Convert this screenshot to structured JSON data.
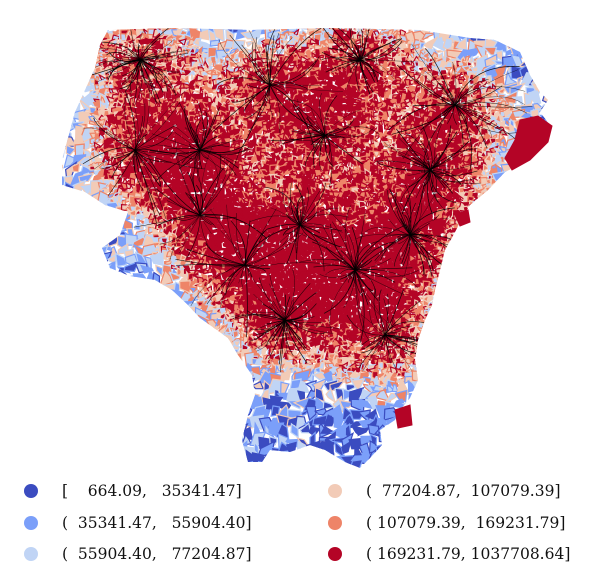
{
  "map": {
    "palette": [
      "#3b4cc0",
      "#7b9ff9",
      "#c0d4f5",
      "#f2cbb7",
      "#ee8468",
      "#b40426"
    ],
    "outline_color": "#000000"
  },
  "legend": {
    "items": [
      {
        "label": "[    664.09,   35341.47]",
        "color": "#3b4cc0"
      },
      {
        "label": "(  35341.47,   55904.40]",
        "color": "#7b9ff9"
      },
      {
        "label": "(  55904.40,   77204.87]",
        "color": "#c0d4f5"
      },
      {
        "label": "(  77204.87,  107079.39]",
        "color": "#f2cbb7"
      },
      {
        "label": "( 107079.39,  169231.79]",
        "color": "#ee8468"
      },
      {
        "label": "( 169231.79, 1037708.64]",
        "color": "#b40426"
      }
    ]
  }
}
